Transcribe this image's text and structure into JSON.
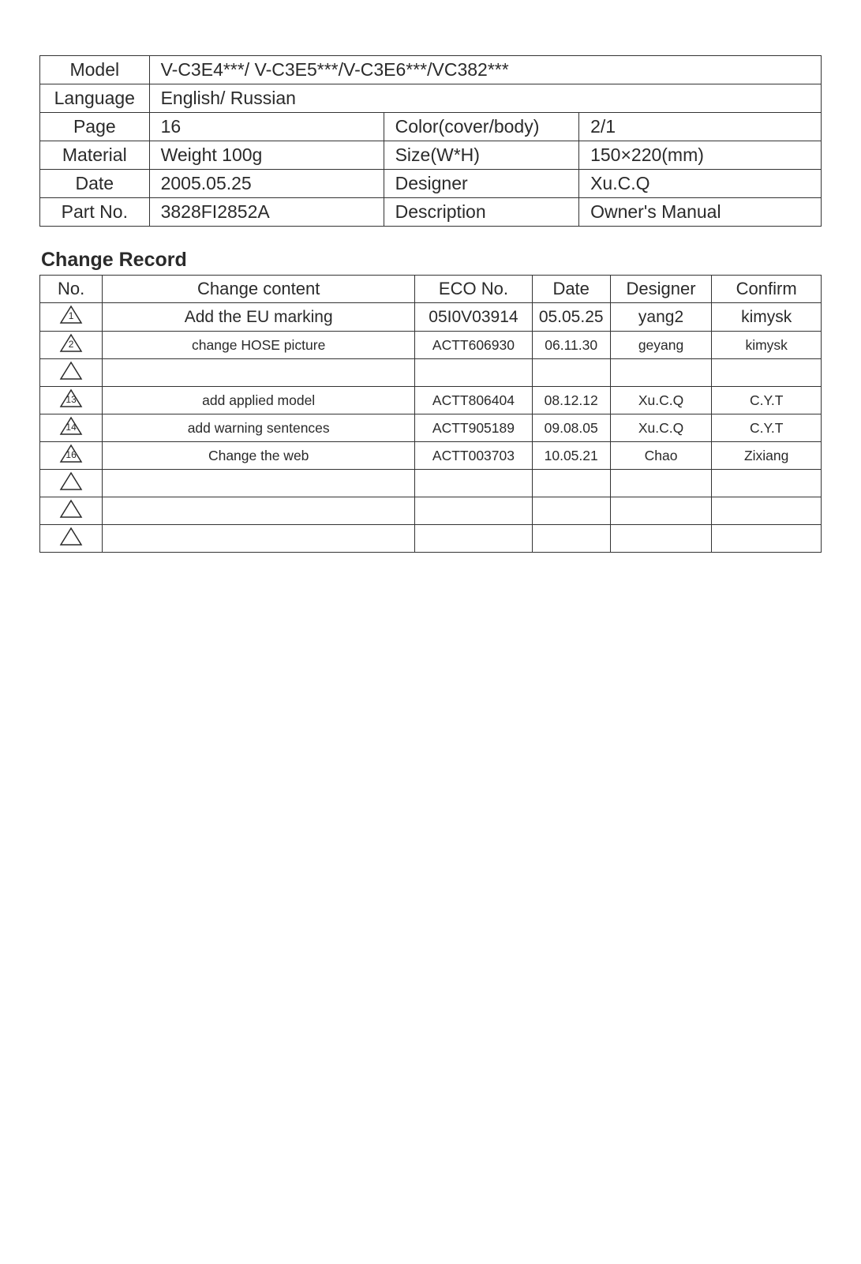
{
  "info": {
    "model_label": "Model",
    "model_value": "V-C3E4***/ V-C3E5***/V-C3E6***/VC382***",
    "language_label": "Language",
    "language_value": "English/ Russian",
    "page_label": "Page",
    "page_value": "16",
    "color_label": "Color(cover/body)",
    "color_value": "2/1",
    "material_label": "Material",
    "material_value": "Weight 100g",
    "size_label": "Size(W*H)",
    "size_value": "150×220(mm)",
    "date_label": "Date",
    "date_value": "2005.05.25",
    "designer_label": "Designer",
    "designer_value": "Xu.C.Q",
    "partno_label": "Part No.",
    "partno_value": "3828FI2852A",
    "description_label": "Description",
    "description_value": "Owner's Manual"
  },
  "change_record": {
    "title": "Change Record",
    "headers": {
      "no": "No.",
      "content": "Change content",
      "eco": "ECO No.",
      "date": "Date",
      "designer": "Designer",
      "confirm": "Confirm"
    },
    "row0": {
      "num": "1",
      "content": "Add the EU marking",
      "eco": "05I0V03914",
      "date": "05.05.25",
      "designer": "yang2",
      "confirm": "kimysk"
    },
    "row1": {
      "num": "2",
      "content": "change HOSE picture",
      "eco": "ACTT606930",
      "date": "06.11.30",
      "designer": "geyang",
      "confirm": "kimysk"
    },
    "row2": {
      "num": "",
      "content": "",
      "eco": "",
      "date": "",
      "designer": "",
      "confirm": ""
    },
    "row3": {
      "num": "13",
      "content": "add applied model",
      "eco": "ACTT806404",
      "date": "08.12.12",
      "designer": "Xu.C.Q",
      "confirm": "C.Y.T"
    },
    "row4": {
      "num": "14",
      "content": "add warning sentences",
      "eco": "ACTT905189",
      "date": "09.08.05",
      "designer": "Xu.C.Q",
      "confirm": "C.Y.T"
    },
    "row5": {
      "num": "16",
      "content": "Change the web",
      "eco": "ACTT003703",
      "date": "10.05.21",
      "designer": "Chao",
      "confirm": "Zixiang"
    },
    "row6": {
      "num": "",
      "content": "",
      "eco": "",
      "date": "",
      "designer": "",
      "confirm": ""
    },
    "row7": {
      "num": "",
      "content": "",
      "eco": "",
      "date": "",
      "designer": "",
      "confirm": ""
    },
    "row8": {
      "num": "",
      "content": "",
      "eco": "",
      "date": "",
      "designer": "",
      "confirm": ""
    }
  },
  "styling": {
    "triangle_stroke": "#2a2a2a",
    "background_color": "#ffffff",
    "border_color": "#333333",
    "text_color": "#2a2a2a"
  }
}
